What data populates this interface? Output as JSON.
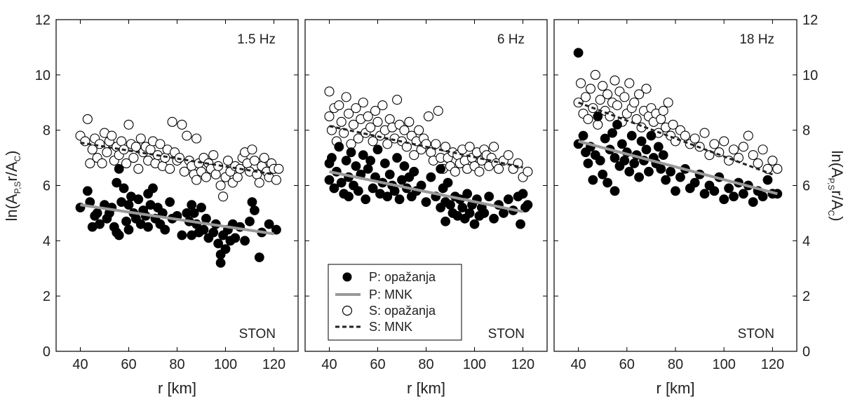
{
  "figure": {
    "ylabel_left": "ln(A_{P,S}r/A_C)",
    "ylabel_right": "ln(A_{P,S}r/A_C)",
    "xlabel": "r [km]"
  },
  "legend": {
    "items": [
      {
        "label": "P: opažanja",
        "marker": "filled-circle"
      },
      {
        "label": "P: MNK",
        "marker": "gray-line"
      },
      {
        "label": "S: opažanja",
        "marker": "open-circle"
      },
      {
        "label": "S: MNK",
        "marker": "dashed-line"
      }
    ]
  },
  "colors": {
    "p_fit": "#999999",
    "s_fit": "#222222",
    "marker": "#000000"
  },
  "chart_data": [
    {
      "type": "scatter",
      "title": "1.5 Hz",
      "station": "STON",
      "xlabel": "r [km]",
      "ylabel": "ln(A_{P,S}r/A_C)",
      "xlim": [
        30,
        130
      ],
      "ylim": [
        0,
        12
      ],
      "xticks": [
        40,
        60,
        80,
        100,
        120
      ],
      "yticks": [
        0,
        2,
        4,
        6,
        8,
        10,
        12
      ],
      "grid": false,
      "series": [
        {
          "name": "P: opažanja",
          "kind": "filled-points",
          "x": [
            40,
            43,
            44,
            45,
            46,
            47,
            48,
            50,
            51,
            52,
            53,
            54,
            55,
            55,
            56,
            56,
            57,
            58,
            59,
            60,
            60,
            61,
            62,
            63,
            64,
            65,
            66,
            67,
            68,
            68,
            69,
            70,
            71,
            72,
            73,
            74,
            75,
            77,
            78,
            80,
            82,
            84,
            85,
            86,
            86,
            87,
            88,
            89,
            90,
            91,
            92,
            93,
            95,
            96,
            97,
            98,
            98,
            99,
            100,
            101,
            102,
            103,
            104,
            106,
            108,
            110,
            111,
            112,
            114,
            115,
            118,
            121
          ],
          "y": [
            5.2,
            5.8,
            5.4,
            4.5,
            4.9,
            5.0,
            4.6,
            5.3,
            4.8,
            5.0,
            5.2,
            4.5,
            6.1,
            4.3,
            6.6,
            4.2,
            5.4,
            5.9,
            4.7,
            5.3,
            4.4,
            5.6,
            5.0,
            4.8,
            5.5,
            4.6,
            5.1,
            4.9,
            5.7,
            4.5,
            5.3,
            5.9,
            4.8,
            5.2,
            4.6,
            5.0,
            4.4,
            5.4,
            4.8,
            4.9,
            4.2,
            5.0,
            4.7,
            5.3,
            4.2,
            5.0,
            4.6,
            4.3,
            5.2,
            4.4,
            4.8,
            4.1,
            4.3,
            4.6,
            3.9,
            3.5,
            3.2,
            4.2,
            3.7,
            4.4,
            4.0,
            4.6,
            4.1,
            4.5,
            4.0,
            4.7,
            5.4,
            5.1,
            3.4,
            4.3,
            4.6,
            4.4
          ]
        },
        {
          "name": "P: MNK",
          "kind": "line",
          "x": [
            40,
            120
          ],
          "y": [
            5.3,
            4.25
          ]
        },
        {
          "name": "S: opažanja",
          "kind": "open-points",
          "x": [
            40,
            42,
            43,
            44,
            45,
            46,
            47,
            48,
            49,
            50,
            51,
            52,
            53,
            54,
            55,
            56,
            57,
            58,
            59,
            60,
            61,
            62,
            63,
            64,
            65,
            66,
            67,
            68,
            69,
            70,
            71,
            72,
            73,
            74,
            75,
            76,
            77,
            78,
            79,
            80,
            81,
            82,
            83,
            84,
            85,
            86,
            87,
            88,
            88,
            89,
            90,
            91,
            92,
            93,
            94,
            95,
            96,
            97,
            98,
            99,
            100,
            101,
            102,
            103,
            104,
            105,
            106,
            107,
            108,
            109,
            110,
            111,
            112,
            113,
            114,
            115,
            116,
            117,
            118,
            119,
            120,
            121,
            122
          ],
          "y": [
            7.8,
            7.6,
            8.4,
            6.8,
            7.3,
            7.7,
            7.0,
            7.5,
            6.8,
            7.9,
            7.2,
            7.6,
            7.8,
            6.9,
            7.4,
            7.1,
            7.6,
            7.3,
            6.8,
            8.2,
            7.5,
            7.0,
            7.4,
            6.6,
            7.7,
            7.2,
            7.4,
            6.9,
            7.3,
            7.6,
            6.8,
            7.1,
            7.5,
            6.7,
            7.0,
            7.3,
            6.6,
            8.3,
            7.2,
            6.9,
            7.0,
            8.2,
            6.5,
            7.8,
            6.9,
            6.7,
            6.4,
            6.2,
            7.7,
            6.8,
            6.5,
            7.0,
            6.3,
            6.8,
            6.6,
            7.1,
            6.4,
            6.7,
            6.0,
            5.6,
            6.3,
            6.9,
            6.5,
            6.1,
            6.7,
            6.3,
            6.6,
            7.0,
            7.2,
            6.8,
            6.5,
            7.3,
            6.9,
            6.4,
            6.1,
            6.7,
            7.0,
            6.5,
            6.3,
            6.8,
            6.6,
            6.2,
            6.6
          ]
        },
        {
          "name": "S: MNK",
          "kind": "dashed-line",
          "x": [
            40,
            120
          ],
          "y": [
            7.55,
            6.4
          ]
        }
      ]
    },
    {
      "type": "scatter",
      "title": "6 Hz",
      "station": "STON",
      "xlabel": "r [km]",
      "ylabel": "ln(A_{P,S}r/A_C)",
      "xlim": [
        30,
        130
      ],
      "ylim": [
        0,
        12
      ],
      "xticks": [
        40,
        60,
        80,
        100,
        120
      ],
      "yticks": [
        0,
        2,
        4,
        6,
        8,
        10,
        12
      ],
      "grid": false,
      "series": [
        {
          "name": "P: opažanja",
          "kind": "filled-points",
          "x": [
            40,
            40,
            41,
            42,
            43,
            44,
            45,
            46,
            47,
            48,
            48,
            49,
            50,
            51,
            52,
            53,
            54,
            55,
            56,
            57,
            58,
            59,
            60,
            61,
            62,
            63,
            64,
            65,
            66,
            67,
            68,
            69,
            70,
            71,
            72,
            73,
            74,
            75,
            76,
            78,
            80,
            82,
            84,
            86,
            86,
            87,
            88,
            88,
            89,
            90,
            91,
            92,
            93,
            94,
            95,
            96,
            97,
            98,
            99,
            100,
            101,
            102,
            103,
            104,
            106,
            108,
            110,
            112,
            114,
            116,
            118,
            119,
            120,
            121,
            122
          ],
          "y": [
            6.8,
            6.2,
            7.0,
            5.9,
            6.5,
            7.4,
            6.1,
            5.7,
            6.9,
            6.3,
            5.6,
            7.2,
            6.0,
            6.7,
            5.8,
            6.4,
            7.1,
            5.5,
            6.6,
            6.9,
            5.9,
            6.3,
            7.3,
            5.7,
            6.1,
            6.8,
            5.6,
            6.4,
            6.0,
            5.8,
            7.0,
            5.5,
            6.2,
            6.7,
            5.9,
            6.3,
            5.6,
            6.5,
            5.8,
            6.0,
            5.4,
            6.3,
            5.6,
            6.6,
            5.2,
            5.9,
            5.4,
            4.7,
            6.1,
            5.3,
            5.0,
            5.6,
            4.9,
            5.5,
            5.2,
            4.8,
            5.7,
            5.0,
            5.3,
            4.6,
            5.5,
            4.9,
            5.2,
            5.0,
            5.6,
            4.8,
            5.3,
            5.0,
            5.5,
            5.1,
            5.6,
            4.6,
            5.7,
            5.2,
            5.3
          ]
        },
        {
          "name": "P: MNK",
          "kind": "line",
          "x": [
            40,
            120
          ],
          "y": [
            6.5,
            5.05
          ]
        },
        {
          "name": "S: opažanja",
          "kind": "open-points",
          "x": [
            40,
            40,
            41,
            42,
            43,
            44,
            45,
            46,
            47,
            48,
            49,
            50,
            51,
            52,
            53,
            54,
            55,
            56,
            57,
            58,
            59,
            60,
            61,
            62,
            63,
            64,
            65,
            66,
            67,
            68,
            69,
            70,
            71,
            72,
            73,
            74,
            75,
            76,
            77,
            78,
            79,
            80,
            81,
            82,
            83,
            84,
            85,
            86,
            87,
            88,
            89,
            90,
            91,
            92,
            93,
            94,
            95,
            96,
            97,
            98,
            99,
            100,
            101,
            102,
            103,
            104,
            105,
            106,
            107,
            108,
            109,
            110,
            112,
            114,
            116,
            118,
            120,
            122
          ],
          "y": [
            8.5,
            9.4,
            8.0,
            8.8,
            7.6,
            8.9,
            8.3,
            7.9,
            9.2,
            8.6,
            7.5,
            8.2,
            8.8,
            7.7,
            8.4,
            9.0,
            7.9,
            8.5,
            8.1,
            7.6,
            8.7,
            8.3,
            7.8,
            8.9,
            8.0,
            7.5,
            8.4,
            8.1,
            7.7,
            9.1,
            8.2,
            7.6,
            8.0,
            7.4,
            8.3,
            7.8,
            7.1,
            7.6,
            8.0,
            7.3,
            7.7,
            7.5,
            8.5,
            7.2,
            6.9,
            7.5,
            8.7,
            7.0,
            6.6,
            7.4,
            7.0,
            6.7,
            7.2,
            6.5,
            7.1,
            6.8,
            7.3,
            6.9,
            6.6,
            7.4,
            7.0,
            6.7,
            7.2,
            6.5,
            6.9,
            7.3,
            7.1,
            6.7,
            7.0,
            7.4,
            6.8,
            6.6,
            6.9,
            7.1,
            6.6,
            6.8,
            6.3,
            6.5
          ]
        },
        {
          "name": "S: MNK",
          "kind": "dashed-line",
          "x": [
            40,
            120
          ],
          "y": [
            8.15,
            6.65
          ]
        }
      ]
    },
    {
      "type": "scatter",
      "title": "18 Hz",
      "station": "STON",
      "xlabel": "r [km]",
      "ylabel": "ln(A_{P,S}r/A_C)",
      "xlim": [
        30,
        130
      ],
      "ylim": [
        0,
        12
      ],
      "xticks": [
        40,
        60,
        80,
        100,
        120
      ],
      "yticks": [
        0,
        2,
        4,
        6,
        8,
        10,
        12
      ],
      "grid": false,
      "series": [
        {
          "name": "P: opažanja",
          "kind": "filled-points",
          "x": [
            40,
            40,
            42,
            43,
            44,
            45,
            46,
            47,
            48,
            49,
            50,
            51,
            52,
            53,
            54,
            55,
            55,
            56,
            57,
            58,
            59,
            60,
            61,
            62,
            63,
            64,
            65,
            66,
            67,
            68,
            69,
            70,
            71,
            72,
            73,
            74,
            75,
            76,
            78,
            80,
            82,
            84,
            86,
            88,
            90,
            92,
            94,
            96,
            98,
            100,
            102,
            104,
            106,
            108,
            110,
            112,
            114,
            116,
            118,
            120,
            122
          ],
          "y": [
            10.8,
            7.5,
            7.8,
            7.2,
            6.8,
            7.4,
            6.2,
            7.1,
            8.5,
            6.9,
            6.4,
            7.7,
            6.1,
            7.3,
            7.9,
            5.8,
            7.0,
            8.2,
            6.7,
            7.5,
            6.9,
            7.2,
            6.5,
            7.8,
            6.8,
            7.1,
            6.3,
            7.6,
            6.9,
            7.3,
            6.5,
            7.8,
            7.0,
            6.8,
            7.4,
            6.6,
            7.1,
            6.2,
            6.5,
            5.8,
            6.3,
            6.6,
            5.9,
            6.1,
            6.4,
            5.7,
            6.0,
            5.8,
            6.3,
            5.5,
            5.9,
            5.6,
            6.1,
            5.7,
            6.0,
            5.4,
            5.8,
            5.6,
            6.2,
            5.7,
            5.7
          ]
        },
        {
          "name": "P: MNK",
          "kind": "line",
          "x": [
            40,
            122
          ],
          "y": [
            7.6,
            5.7
          ]
        },
        {
          "name": "S: opažanja",
          "kind": "open-points",
          "x": [
            40,
            41,
            42,
            43,
            44,
            45,
            46,
            47,
            48,
            49,
            50,
            51,
            52,
            53,
            54,
            55,
            56,
            57,
            58,
            59,
            60,
            61,
            62,
            63,
            64,
            65,
            66,
            67,
            68,
            69,
            70,
            71,
            72,
            73,
            74,
            75,
            76,
            77,
            78,
            79,
            80,
            82,
            84,
            86,
            88,
            90,
            92,
            94,
            96,
            98,
            100,
            102,
            104,
            106,
            108,
            110,
            112,
            114,
            116,
            118,
            120,
            122
          ],
          "y": [
            9.0,
            9.7,
            8.6,
            9.2,
            8.4,
            9.5,
            8.8,
            10.0,
            8.2,
            9.1,
            9.6,
            8.7,
            9.3,
            8.5,
            9.0,
            9.8,
            8.9,
            9.4,
            8.3,
            9.2,
            8.6,
            9.7,
            8.8,
            9.0,
            8.4,
            9.3,
            8.1,
            8.7,
            9.5,
            8.5,
            8.8,
            8.3,
            8.6,
            7.9,
            8.4,
            8.7,
            8.1,
            9.0,
            7.8,
            8.2,
            7.6,
            8.0,
            7.8,
            7.5,
            7.7,
            7.4,
            7.9,
            7.1,
            7.5,
            7.2,
            7.6,
            6.9,
            7.3,
            7.0,
            7.4,
            7.8,
            7.1,
            6.8,
            7.3,
            6.6,
            6.9,
            6.6
          ]
        },
        {
          "name": "S: MNK",
          "kind": "dashed-line",
          "x": [
            40,
            120
          ],
          "y": [
            9.0,
            6.4
          ]
        }
      ]
    }
  ]
}
